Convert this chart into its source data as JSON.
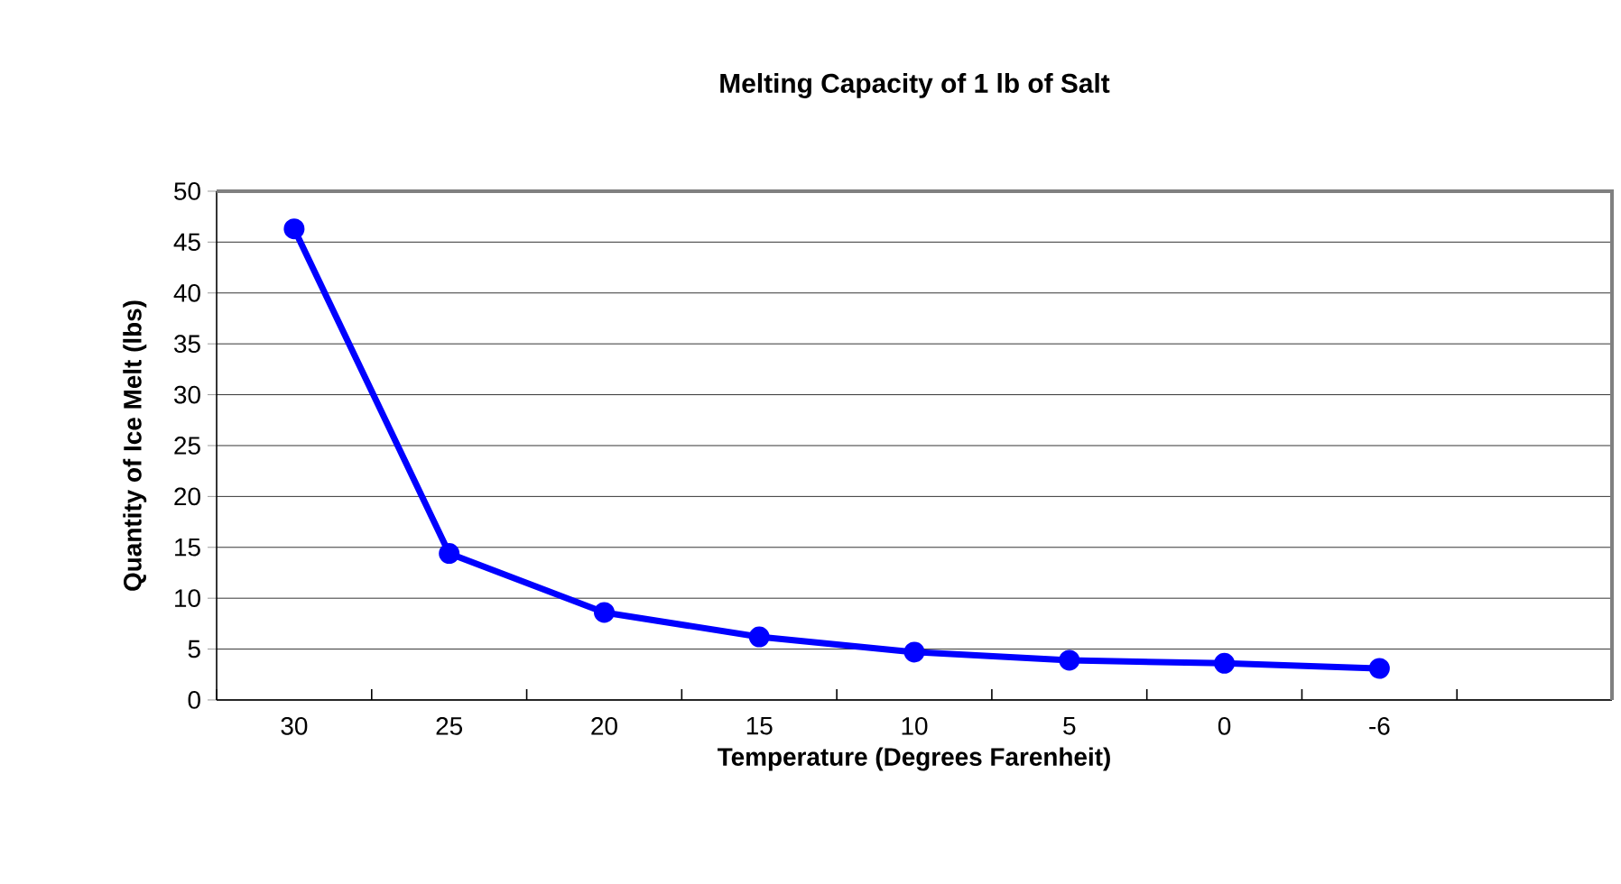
{
  "chart_data": {
    "type": "line",
    "title": "Melting Capacity of 1 lb of Salt",
    "xlabel": "Temperature (Degrees Farenheit)",
    "ylabel": "Quantity of Ice Melt (lbs)",
    "categories": [
      "30",
      "25",
      "20",
      "15",
      "10",
      "5",
      "0",
      "-6",
      null
    ],
    "series": [
      {
        "color": "#0000ff",
        "values": [
          46.3,
          14.4,
          8.6,
          6.2,
          4.7,
          3.9,
          3.6,
          3.1,
          null
        ]
      }
    ],
    "ylim": [
      0,
      50
    ],
    "yticks": [
      0,
      5,
      10,
      15,
      20,
      25,
      30,
      35,
      40,
      45,
      50
    ],
    "grid": "y",
    "marker": "circle",
    "line_style": "solid"
  }
}
